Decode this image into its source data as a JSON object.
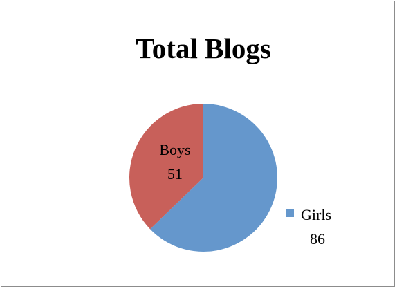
{
  "chart_data": {
    "type": "pie",
    "title": "Total Blogs",
    "slices": [
      {
        "label": "Girls",
        "value": 86,
        "color": "#6597cc"
      },
      {
        "label": "Boys",
        "value": 51,
        "color": "#c8605a"
      }
    ],
    "legend": "right",
    "data_labels": true
  }
}
